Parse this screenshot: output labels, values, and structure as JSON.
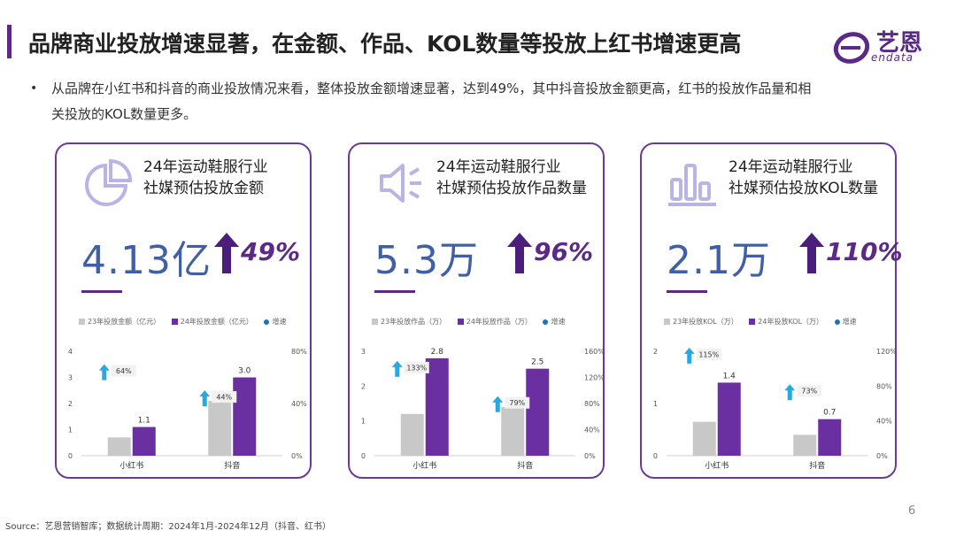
{
  "header": {
    "title": "品牌商业投放增速显著，在金额、作品、KOL数量等投放上红书增速更高",
    "logo_cn": "艺恩",
    "logo_en": "endata"
  },
  "summary": {
    "bullet": "•",
    "text": "从品牌在小红书和抖音的商业投放情况来看，整体投放金额增速显著，达到49%，其中抖音投放金额更高，红书的投放作品量和相关投放的KOL数量更多。"
  },
  "cards": [
    {
      "icon": "pie-chart-icon",
      "title_line1": "24年运动鞋服行业",
      "title_line2": "社媒预估投放金额",
      "big_value": "4.13亿",
      "growth": "49%",
      "legend": {
        "s23": "23年投放金额（亿元）",
        "s24": "24年投放金额（亿元）",
        "rate": "增速"
      }
    },
    {
      "icon": "speaker-icon",
      "title_line1": "24年运动鞋服行业",
      "title_line2": "社媒预估投放作品数量",
      "big_value": "5.3万",
      "growth": "96%",
      "legend": {
        "s23": "23年投放作品（万）",
        "s24": "24年投放作品（万）",
        "rate": "增速"
      }
    },
    {
      "icon": "bar-chart-icon",
      "title_line1": "24年运动鞋服行业",
      "title_line2": "社媒预估投放KOL数量",
      "big_value": "2.1万",
      "growth": "110%",
      "legend": {
        "s23": "23年投放KOL（万）",
        "s24": "24年投放KOL（万）",
        "rate": "增速"
      }
    }
  ],
  "chart_data": [
    {
      "type": "bar",
      "title": "24年运动鞋服行业社媒预估投放金额",
      "categories": [
        "小红书",
        "抖音"
      ],
      "series": [
        {
          "name": "23年投放金额（亿元）",
          "values": [
            0.7,
            2.1
          ]
        },
        {
          "name": "24年投放金额（亿元）",
          "values": [
            1.1,
            3.0
          ]
        },
        {
          "name": "增速",
          "values": [
            64,
            44
          ]
        }
      ],
      "data_labels_24": [
        "1.1",
        "3.0"
      ],
      "growth_labels": [
        "64%",
        "44%"
      ],
      "ylim": [
        0,
        4
      ],
      "yticks": [
        "0",
        "1",
        "2",
        "3",
        "4"
      ],
      "y2lim": [
        0,
        80
      ],
      "y2ticks": [
        "0%",
        "40%",
        "80%"
      ],
      "colors": {
        "s23": "#c8c8c8",
        "s24": "#6a2fa0",
        "rate": "#1f6fbf",
        "arrow": "#29a8e0"
      }
    },
    {
      "type": "bar",
      "title": "24年运动鞋服行业社媒预估投放作品数量",
      "categories": [
        "小红书",
        "抖音"
      ],
      "series": [
        {
          "name": "23年投放作品（万）",
          "values": [
            1.2,
            1.4
          ]
        },
        {
          "name": "24年投放作品（万）",
          "values": [
            2.8,
            2.5
          ]
        },
        {
          "name": "增速",
          "values": [
            133,
            79
          ]
        }
      ],
      "data_labels_24": [
        "2.8",
        "2.5"
      ],
      "growth_labels": [
        "133%",
        "79%"
      ],
      "ylim": [
        0,
        3
      ],
      "yticks": [
        "0",
        "1",
        "2",
        "3"
      ],
      "y2lim": [
        0,
        160
      ],
      "y2ticks": [
        "0%",
        "40%",
        "80%",
        "120%",
        "160%"
      ],
      "colors": {
        "s23": "#c8c8c8",
        "s24": "#6a2fa0",
        "rate": "#1f6fbf",
        "arrow": "#29a8e0"
      }
    },
    {
      "type": "bar",
      "title": "24年运动鞋服行业社媒预估投放KOL数量",
      "categories": [
        "小红书",
        "抖音"
      ],
      "series": [
        {
          "name": "23年投放KOL（万）",
          "values": [
            0.65,
            0.4
          ]
        },
        {
          "name": "24年投放KOL（万）",
          "values": [
            1.4,
            0.7
          ]
        },
        {
          "name": "增速",
          "values": [
            115,
            73
          ]
        }
      ],
      "data_labels_24": [
        "1.4",
        "0.7"
      ],
      "growth_labels": [
        "115%",
        "73%"
      ],
      "ylim": [
        0,
        2
      ],
      "yticks": [
        "0",
        "1",
        "2"
      ],
      "y2lim": [
        0,
        120
      ],
      "y2ticks": [
        "0%",
        "40%",
        "80%",
        "120%"
      ],
      "colors": {
        "s23": "#c8c8c8",
        "s24": "#6a2fa0",
        "rate": "#1f6fbf",
        "arrow": "#29a8e0"
      }
    }
  ],
  "footer": {
    "source": "Source：艺恩营销智库；数据统计周期：2024年1月-2024年12月（抖音、红书）",
    "page": "6"
  }
}
